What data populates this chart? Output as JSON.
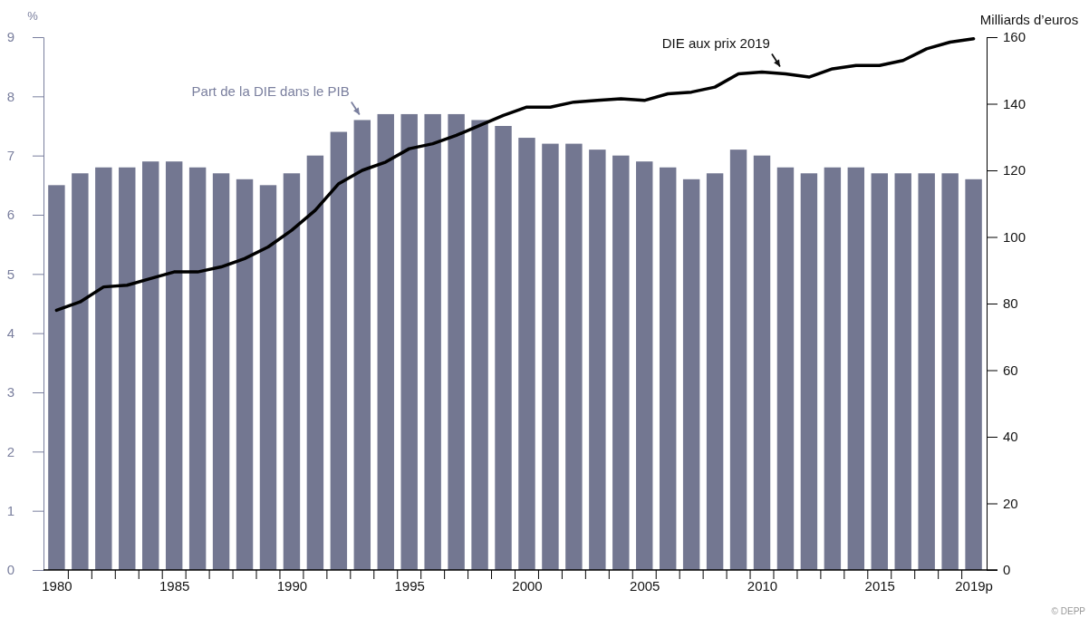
{
  "chart_data": {
    "type": "bar",
    "categories": [
      "1980",
      null,
      null,
      null,
      null,
      "1985",
      null,
      null,
      null,
      null,
      "1990",
      null,
      null,
      null,
      null,
      "1995",
      null,
      null,
      null,
      null,
      "2000",
      null,
      null,
      null,
      null,
      "2005",
      null,
      null,
      null,
      null,
      "2010",
      null,
      null,
      null,
      null,
      "2015",
      null,
      null,
      null,
      "2019p"
    ],
    "series": [
      {
        "name": "Part de la DIE dans le PIB",
        "color": "#737791",
        "values": [
          6.5,
          6.7,
          6.8,
          6.8,
          6.9,
          6.9,
          6.8,
          6.7,
          6.6,
          6.5,
          6.7,
          7.0,
          7.4,
          7.6,
          7.7,
          7.7,
          7.7,
          7.7,
          7.6,
          7.5,
          7.3,
          7.2,
          7.2,
          7.1,
          7.0,
          6.9,
          6.8,
          6.6,
          6.7,
          7.1,
          7.0,
          6.8,
          6.7,
          6.8,
          6.8,
          6.7,
          6.7,
          6.7,
          6.7,
          6.6
        ]
      },
      {
        "name": "DIE aux prix 2019",
        "type": "line",
        "axis": "y2",
        "color": "#000000",
        "values": [
          78,
          80.5,
          85,
          85.5,
          87.5,
          89.5,
          89.5,
          91,
          93.5,
          97,
          102,
          108,
          116,
          120,
          122.5,
          126.5,
          128,
          130.5,
          133.5,
          136.5,
          139,
          139,
          140.5,
          141,
          141.5,
          141,
          143,
          143.5,
          145,
          149,
          149.5,
          149,
          148,
          150.5,
          151.5,
          151.5,
          153,
          156.5,
          158.5,
          159.5
        ]
      }
    ],
    "ylabel": "%",
    "y2label": "Milliards d’euros",
    "ylim": [
      0,
      9
    ],
    "yticks": [
      0,
      1,
      2,
      3,
      4,
      5,
      6,
      7,
      8,
      9
    ],
    "y2lim": [
      0,
      160
    ],
    "y2ticks": [
      0,
      20,
      40,
      60,
      80,
      100,
      120,
      140,
      160
    ],
    "annotations": [
      "© DEPP"
    ]
  }
}
